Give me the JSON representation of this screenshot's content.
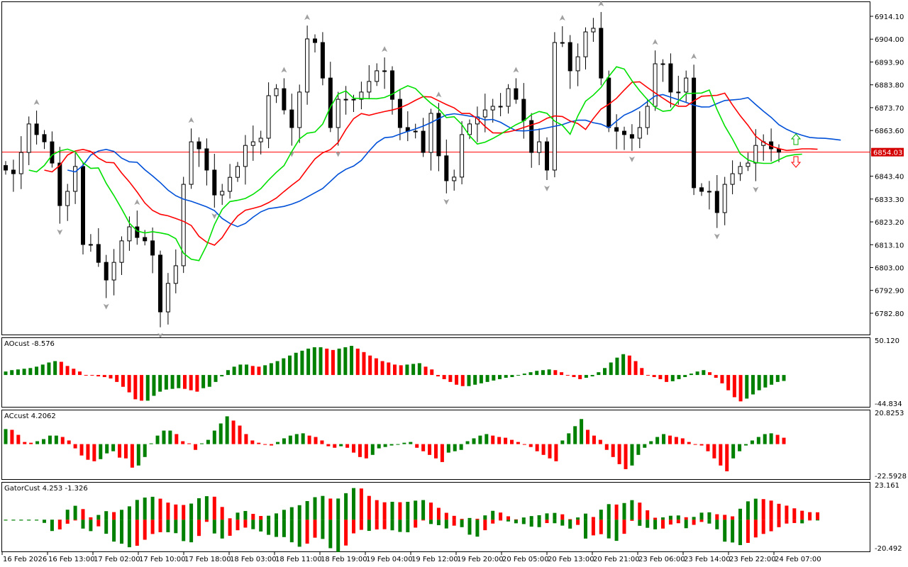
{
  "chart_data": [
    {
      "type": "candlestick",
      "symbol_panel": "main",
      "price_axis_ticks": [
        "6914.10",
        "6904.00",
        "6893.90",
        "6883.80",
        "6873.70",
        "6863.60",
        "6843.40",
        "6833.30",
        "6823.20",
        "6813.10",
        "6803.00",
        "6792.90",
        "6782.80"
      ],
      "current_price": "6854.03",
      "ylim": [
        6770,
        6920
      ],
      "closes": [
        6846.1,
        6844.5,
        6853.9,
        6866.5,
        6861.8,
        6858.6,
        6849.2,
        6830.4,
        6836.7,
        6847.7,
        6813.2,
        6813.2,
        6805.3,
        6797.5,
        6805.3,
        6814.8,
        6821.0,
        6816.3,
        6814.8,
        6808.5,
        6783.4,
        6796.0,
        6803.8,
        6839.8,
        6858.6,
        6855.5,
        6846.1,
        6835.1,
        6836.7,
        6842.9,
        6847.7,
        6857.0,
        6858.6,
        6860.2,
        6879.0,
        6882.1,
        6872.7,
        6864.9,
        6880.6,
        6904.1,
        6902.5,
        6886.8,
        6864.9,
        6877.4,
        6877.4,
        6877.4,
        6880.6,
        6885.3,
        6890.0,
        6890.0,
        6877.4,
        6864.9,
        6863.3,
        6863.3,
        6853.9,
        6871.2,
        6852.4,
        6841.4,
        6843.0,
        6861.8,
        6866.5,
        6869.6,
        6872.7,
        6874.3,
        6874.3,
        6882.1,
        6877.4,
        6868.0,
        6853.9,
        6858.6,
        6846.1,
        6902.5,
        6902.5,
        6890.0,
        6896.2,
        6907.2,
        6908.8,
        6886.8,
        6864.9,
        6863.3,
        6861.8,
        6860.2,
        6864.9,
        6874.3,
        6893.1,
        6893.1,
        6880.6,
        6880.6,
        6886.8,
        6838.3,
        6836.7,
        6836.7,
        6827.3,
        6839.8,
        6844.5,
        6847.7,
        6849.2,
        6857.0,
        6858.6,
        6855.5,
        6854.03
      ],
      "overlays": [
        {
          "indicator": "alligator-jaw",
          "color": "#0050d8"
        },
        {
          "indicator": "alligator-teeth",
          "color": "#ff0000"
        },
        {
          "indicator": "alligator-lips",
          "color": "#00e000"
        }
      ],
      "signal_arrows": [
        {
          "type": "up",
          "color": "#00b000"
        },
        {
          "type": "down",
          "color": "#ff0000"
        }
      ]
    },
    {
      "type": "histogram",
      "title": "AOcust -8.576",
      "ylim": [
        -44.834,
        50.12
      ],
      "axis_labels": [
        "50.120",
        "-44.834"
      ],
      "values": [
        5,
        7,
        8,
        9,
        10,
        12,
        15,
        18,
        20,
        19,
        13,
        9,
        5,
        0,
        -1,
        -2,
        -3,
        -5,
        -10,
        -17,
        -25,
        -35,
        -37,
        -37,
        -30,
        -24,
        -21,
        -20,
        -19,
        -20,
        -22,
        -24,
        -19,
        -17,
        -10,
        -2,
        7,
        12,
        15,
        15,
        13,
        12,
        14,
        17,
        20,
        24,
        28,
        32,
        35,
        38,
        40,
        40,
        38,
        36,
        38,
        40,
        42,
        38,
        33,
        28,
        24,
        20,
        18,
        15,
        14,
        15,
        16,
        17,
        12,
        8,
        -2,
        -6,
        -10,
        -14,
        -16,
        -16,
        -14,
        -12,
        -10,
        -8,
        -6,
        -4,
        -3,
        0,
        2,
        4,
        6,
        7,
        8,
        7,
        4,
        0,
        -3,
        -6,
        -4,
        -2,
        4,
        10,
        18,
        25,
        30,
        28,
        20,
        10,
        0,
        -3,
        -6,
        -10,
        -9,
        -6,
        -3,
        2,
        5,
        7,
        4,
        -4,
        -12,
        -22,
        -32,
        -38,
        -34,
        -28,
        -22,
        -18,
        -14,
        -10,
        -8.576
      ]
    },
    {
      "type": "histogram",
      "title": "ACcust 4.2062",
      "ylim": [
        -22.5928,
        20.8253
      ],
      "axis_labels": [
        "20.8253",
        "-22.5928"
      ],
      "values": [
        9.9,
        9.4,
        6.1,
        1.4,
        0.9,
        1.9,
        3.3,
        5.6,
        5.6,
        4.7,
        2.4,
        -2.8,
        -7.5,
        -10.3,
        -11.3,
        -9.9,
        -6.1,
        -4.7,
        -8.9,
        -9.4,
        -15.5,
        -14.1,
        -8.5,
        0.5,
        5.6,
        8.9,
        8.9,
        6.6,
        1.9,
        0.5,
        -3.8,
        0.5,
        2.8,
        8.9,
        13.6,
        18.3,
        15.5,
        12.2,
        6.6,
        2.4,
        0.9,
        0,
        -0.9,
        1.4,
        3.8,
        5.6,
        6.6,
        7.1,
        5.6,
        4.7,
        2.4,
        -1.4,
        -2.4,
        -1.4,
        -2.4,
        -5.6,
        -8.5,
        -9.4,
        -7.1,
        -2.8,
        -1.9,
        -0.9,
        0,
        0.9,
        1.4,
        -2.4,
        -4.7,
        -7.1,
        -9.4,
        -11.8,
        -5.6,
        -4.7,
        -3.8,
        1.9,
        3.8,
        5.6,
        6.6,
        5.6,
        4.7,
        4.2,
        2.8,
        1.4,
        0,
        -1.9,
        -4.7,
        -7.1,
        -9.4,
        -11.3,
        2.4,
        7.1,
        11.8,
        16.5,
        9.4,
        5.6,
        2.8,
        -3.8,
        -8.5,
        -13.2,
        -16.5,
        -14.1,
        -7.1,
        -2.4,
        1.9,
        4.7,
        6.6,
        5.6,
        4.7,
        3.8,
        1.4,
        0,
        -0.9,
        -4.7,
        -9.4,
        -14.1,
        -17.9,
        -9.4,
        -4.7,
        -0.9,
        2.4,
        4.7,
        6.6,
        7.1,
        6.1,
        4.2062
      ]
    },
    {
      "type": "histogram",
      "title": "GatorCust 4.253 -1.326",
      "ylim": [
        -20.492,
        23.161
      ],
      "axis_labels": [
        "23.161",
        "-20.492"
      ],
      "last_values": [
        4.253,
        -1.326
      ]
    }
  ],
  "time_axis": [
    "16 Feb 2026",
    "16 Feb 13:00",
    "17 Feb 02:00",
    "17 Feb 10:00",
    "17 Feb 18:00",
    "18 Feb 03:00",
    "18 Feb 11:00",
    "18 Feb 19:00",
    "19 Feb 04:00",
    "19 Feb 12:00",
    "19 Feb 20:00",
    "20 Feb 05:00",
    "20 Feb 13:00",
    "20 Feb 21:00",
    "23 Feb 06:00",
    "23 Feb 14:00",
    "23 Feb 22:00",
    "24 Feb 07:00"
  ],
  "colors": {
    "bull": "#008000",
    "bear": "#ff0000",
    "candle": "#000000",
    "price_line": "#ff0000",
    "fractal": "#a0a0a0"
  }
}
